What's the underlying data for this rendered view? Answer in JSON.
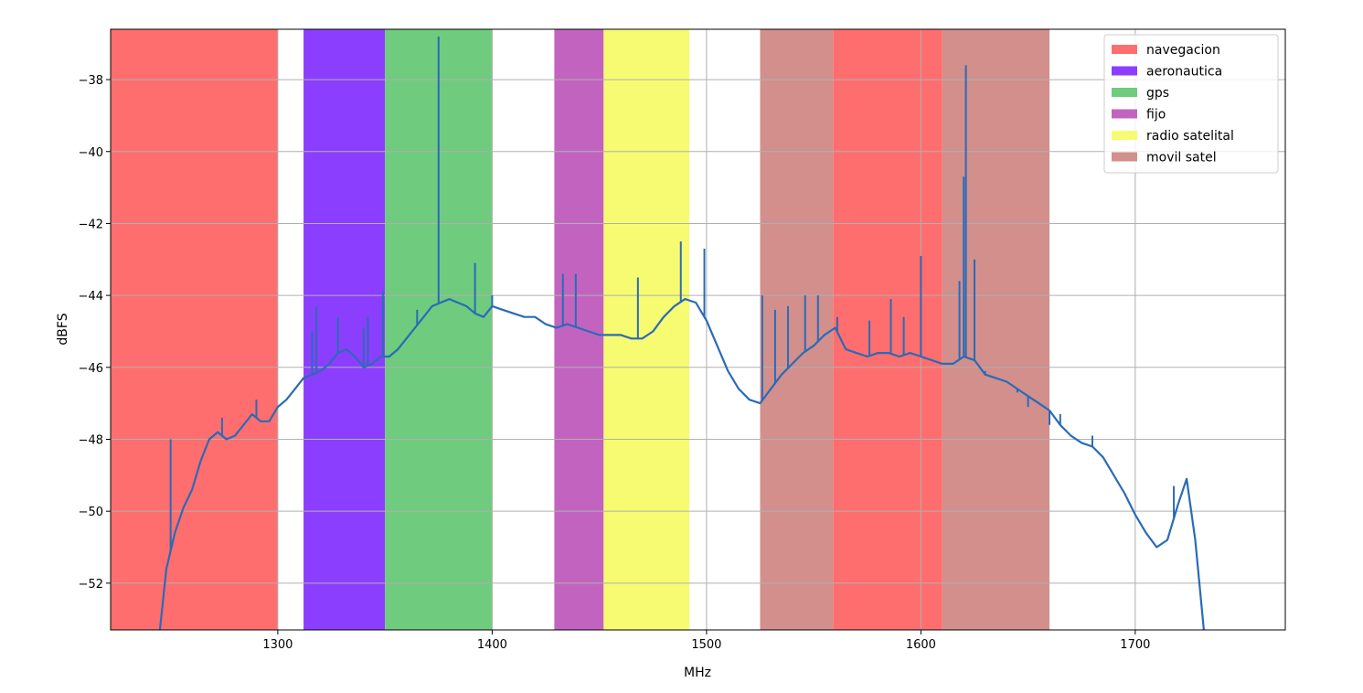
{
  "chart_data": {
    "type": "line",
    "title": "",
    "xlabel": "MHz",
    "ylabel": "dBFS",
    "xlim": [
      1222,
      1770
    ],
    "ylim": [
      -53.3,
      -36.6
    ],
    "xticks": [
      1300,
      1400,
      1500,
      1600,
      1700
    ],
    "yticks": [
      -52,
      -50,
      -48,
      -46,
      -44,
      -42,
      -40,
      -38
    ],
    "grid": true,
    "legend_position": "top-right",
    "bands": [
      {
        "name": "navegacion",
        "color": "#ff6e6e",
        "ranges": [
          [
            1222,
            1300
          ],
          [
            1559,
            1610
          ]
        ]
      },
      {
        "name": "aeronautica",
        "color": "#8c3eff",
        "ranges": [
          [
            1312,
            1350
          ]
        ]
      },
      {
        "name": "gps",
        "color": "#6fcb7e",
        "ranges": [
          [
            1350,
            1400
          ]
        ]
      },
      {
        "name": "fijo",
        "color": "#c264bf",
        "ranges": [
          [
            1429,
            1452
          ]
        ]
      },
      {
        "name": "radio satelital",
        "color": "#f7fb71",
        "ranges": [
          [
            1452,
            1492
          ]
        ]
      },
      {
        "name": "movil satel",
        "color": "#d28f8c",
        "ranges": [
          [
            1525,
            1559
          ],
          [
            1610,
            1660
          ]
        ]
      }
    ],
    "series": [
      {
        "color": "#2a6bb6",
        "x": [
          1245,
          1248,
          1252,
          1256,
          1260,
          1264,
          1268,
          1272,
          1276,
          1280,
          1284,
          1288,
          1292,
          1296,
          1300,
          1304,
          1308,
          1312,
          1316,
          1320,
          1324,
          1328,
          1332,
          1336,
          1340,
          1344,
          1348,
          1352,
          1356,
          1360,
          1364,
          1368,
          1372,
          1376,
          1380,
          1384,
          1388,
          1392,
          1396,
          1400,
          1405,
          1410,
          1415,
          1420,
          1425,
          1430,
          1435,
          1440,
          1445,
          1450,
          1455,
          1460,
          1465,
          1470,
          1475,
          1480,
          1485,
          1490,
          1495,
          1500,
          1505,
          1510,
          1515,
          1520,
          1525,
          1530,
          1535,
          1540,
          1545,
          1550,
          1555,
          1560,
          1565,
          1570,
          1575,
          1580,
          1585,
          1590,
          1595,
          1600,
          1605,
          1610,
          1615,
          1620,
          1625,
          1630,
          1635,
          1640,
          1645,
          1650,
          1655,
          1660,
          1665,
          1670,
          1675,
          1680,
          1685,
          1690,
          1695,
          1700,
          1705,
          1710,
          1715,
          1720,
          1724,
          1728,
          1732
        ],
        "y": [
          -53.3,
          -51.6,
          -50.6,
          -49.9,
          -49.4,
          -48.6,
          -48.0,
          -47.8,
          -48.0,
          -47.9,
          -47.6,
          -47.3,
          -47.5,
          -47.5,
          -47.1,
          -46.9,
          -46.6,
          -46.3,
          -46.2,
          -46.1,
          -45.9,
          -45.6,
          -45.5,
          -45.7,
          -46.0,
          -45.9,
          -45.7,
          -45.7,
          -45.5,
          -45.2,
          -44.9,
          -44.6,
          -44.3,
          -44.2,
          -44.1,
          -44.2,
          -44.3,
          -44.5,
          -44.6,
          -44.3,
          -44.4,
          -44.5,
          -44.6,
          -44.6,
          -44.8,
          -44.9,
          -44.8,
          -44.9,
          -45.0,
          -45.1,
          -45.1,
          -45.1,
          -45.2,
          -45.2,
          -45.0,
          -44.6,
          -44.3,
          -44.1,
          -44.2,
          -44.7,
          -45.4,
          -46.1,
          -46.6,
          -46.9,
          -47.0,
          -46.6,
          -46.2,
          -45.9,
          -45.6,
          -45.4,
          -45.1,
          -44.9,
          -45.5,
          -45.6,
          -45.7,
          -45.6,
          -45.6,
          -45.7,
          -45.6,
          -45.7,
          -45.8,
          -45.9,
          -45.9,
          -45.7,
          -45.8,
          -46.2,
          -46.3,
          -46.4,
          -46.6,
          -46.8,
          -47.0,
          -47.2,
          -47.6,
          -47.9,
          -48.1,
          -48.2,
          -48.5,
          -49.0,
          -49.5,
          -50.1,
          -50.6,
          -51.0,
          -50.8,
          -49.8,
          -49.1,
          -50.8,
          -53.3
        ]
      }
    ],
    "spikes": [
      {
        "x": 1250,
        "y": -48.0
      },
      {
        "x": 1274,
        "y": -47.4
      },
      {
        "x": 1290,
        "y": -46.9
      },
      {
        "x": 1316,
        "y": -45.0
      },
      {
        "x": 1318,
        "y": -44.3
      },
      {
        "x": 1328,
        "y": -44.6
      },
      {
        "x": 1340,
        "y": -44.9
      },
      {
        "x": 1342,
        "y": -44.6
      },
      {
        "x": 1349,
        "y": -43.9
      },
      {
        "x": 1365,
        "y": -44.4
      },
      {
        "x": 1375,
        "y": -36.8
      },
      {
        "x": 1392,
        "y": -43.1
      },
      {
        "x": 1400,
        "y": -44.0
      },
      {
        "x": 1433,
        "y": -43.4
      },
      {
        "x": 1439,
        "y": -43.4
      },
      {
        "x": 1468,
        "y": -43.5
      },
      {
        "x": 1488,
        "y": -42.5
      },
      {
        "x": 1499,
        "y": -42.7
      },
      {
        "x": 1526,
        "y": -44.0
      },
      {
        "x": 1532,
        "y": -44.4
      },
      {
        "x": 1538,
        "y": -44.3
      },
      {
        "x": 1546,
        "y": -44.0
      },
      {
        "x": 1552,
        "y": -44.0
      },
      {
        "x": 1561,
        "y": -44.6
      },
      {
        "x": 1576,
        "y": -44.7
      },
      {
        "x": 1586,
        "y": -44.1
      },
      {
        "x": 1592,
        "y": -44.6
      },
      {
        "x": 1600,
        "y": -42.9
      },
      {
        "x": 1618,
        "y": -43.6
      },
      {
        "x": 1620,
        "y": -40.7
      },
      {
        "x": 1621,
        "y": -37.6
      },
      {
        "x": 1625,
        "y": -43.0
      },
      {
        "x": 1630,
        "y": -46.1
      },
      {
        "x": 1645,
        "y": -46.7
      },
      {
        "x": 1650,
        "y": -47.1
      },
      {
        "x": 1660,
        "y": -47.6
      },
      {
        "x": 1665,
        "y": -47.3
      },
      {
        "x": 1680,
        "y": -47.9
      },
      {
        "x": 1718,
        "y": -49.3
      }
    ]
  }
}
